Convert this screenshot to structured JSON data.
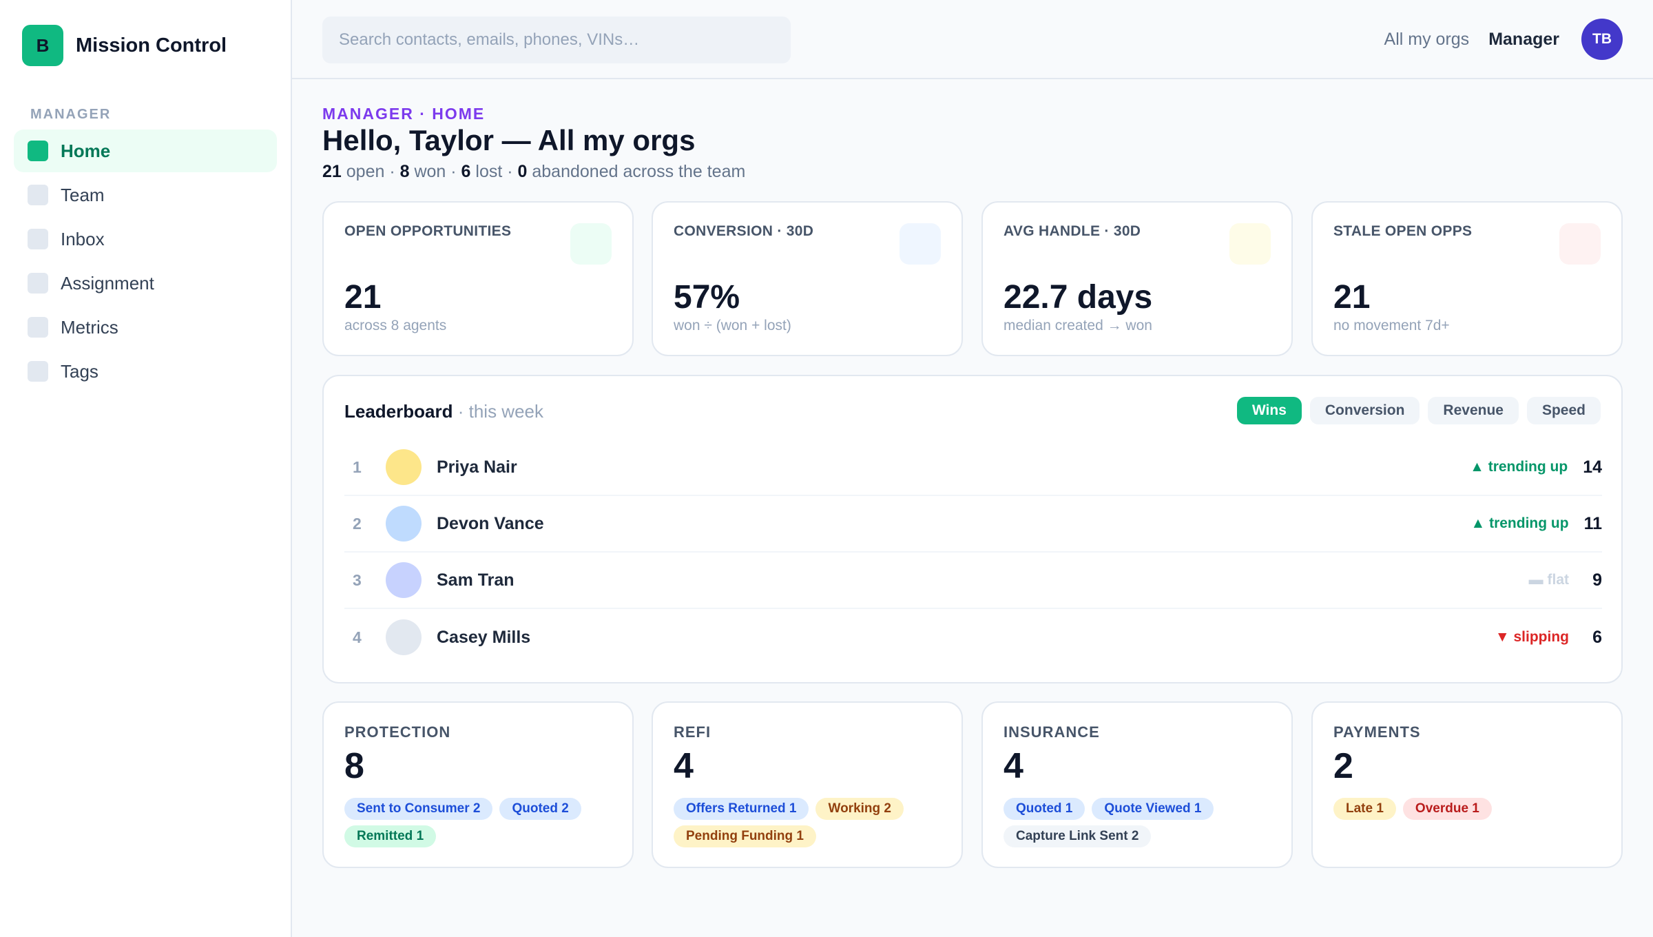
{
  "brand": {
    "logo_letter": "B",
    "name": "Mission Control"
  },
  "sidebar": {
    "section": "MANAGER",
    "items": [
      {
        "label": "Home",
        "active": true
      },
      {
        "label": "Team"
      },
      {
        "label": "Inbox"
      },
      {
        "label": "Assignment"
      },
      {
        "label": "Metrics"
      },
      {
        "label": "Tags"
      }
    ]
  },
  "topbar": {
    "search_placeholder": "Search contacts, emails, phones, VINs…",
    "org_switch": "All my orgs",
    "role": "Manager",
    "avatar_initials": "TB"
  },
  "header": {
    "crumb": "MANAGER · HOME",
    "title": "Hello, Taylor — All my orgs",
    "summary": {
      "open": "21",
      "open_label": " open · ",
      "won": "8",
      "won_label": " won · ",
      "lost": "6",
      "lost_label": " lost · ",
      "abandoned": "0",
      "abandoned_label": " abandoned across the team"
    }
  },
  "kpis": [
    {
      "label": "OPEN OPPORTUNITIES",
      "value": "21",
      "sub": "across 8 agents",
      "icon_color": "#ecfdf5",
      "icon": "open-opportunities-icon"
    },
    {
      "label": "CONVERSION · 30D",
      "value": "57%",
      "sub": "won ÷ (won + lost)",
      "icon_color": "#eff6ff",
      "icon": "conversion-icon"
    },
    {
      "label": "AVG HANDLE · 30D",
      "value": "22.7 days",
      "sub": "median created → won",
      "icon_color": "#fefce8",
      "icon": "avg-handle-icon"
    },
    {
      "label": "STALE OPEN OPPS",
      "value": "21",
      "sub": "no movement 7d+",
      "icon_color": "#fef2f2",
      "icon": "stale-opps-icon"
    }
  ],
  "leaderboard": {
    "title": "Leaderboard",
    "period": " · this week",
    "tabs": [
      {
        "label": "Wins",
        "active": true
      },
      {
        "label": "Conversion"
      },
      {
        "label": "Revenue"
      },
      {
        "label": "Speed"
      }
    ],
    "rows": [
      {
        "rank": "1",
        "name": "Priya Nair",
        "trend": "▲ trending up",
        "trend_color": "#059669",
        "count": "14",
        "avatar_color": "#fde68a"
      },
      {
        "rank": "2",
        "name": "Devon Vance",
        "trend": "▲ trending up",
        "trend_color": "#059669",
        "count": "11",
        "avatar_color": "#bfdbfe"
      },
      {
        "rank": "3",
        "name": "Sam Tran",
        "trend": "▬ flat",
        "trend_color": "#cbd5e1",
        "count": "9",
        "avatar_color": "#c7d2fe"
      },
      {
        "rank": "4",
        "name": "Casey Mills",
        "trend": "▼ slipping",
        "trend_color": "#dc2626",
        "count": "6",
        "avatar_color": "#e2e8f0"
      }
    ]
  },
  "products": [
    {
      "label": "PROTECTION",
      "value": "8",
      "chips": [
        {
          "text": "Sent to Consumer 2",
          "bg": "#dbeafe",
          "fg": "#1d4ed8"
        },
        {
          "text": "Quoted 2",
          "bg": "#dbeafe",
          "fg": "#1d4ed8"
        },
        {
          "text": "Remitted 1",
          "bg": "#d1fae5",
          "fg": "#047857"
        }
      ]
    },
    {
      "label": "REFI",
      "value": "4",
      "chips": [
        {
          "text": "Offers Returned 1",
          "bg": "#dbeafe",
          "fg": "#1d4ed8"
        },
        {
          "text": "Working 2",
          "bg": "#fef3c7",
          "fg": "#92400e"
        },
        {
          "text": "Pending Funding 1",
          "bg": "#fef3c7",
          "fg": "#92400e"
        }
      ]
    },
    {
      "label": "INSURANCE",
      "value": "4",
      "chips": [
        {
          "text": "Quoted 1",
          "bg": "#dbeafe",
          "fg": "#1d4ed8"
        },
        {
          "text": "Quote Viewed 1",
          "bg": "#dbeafe",
          "fg": "#1d4ed8"
        },
        {
          "text": "Capture Link Sent 2",
          "bg": "#f1f5f9",
          "fg": "#334155"
        }
      ]
    },
    {
      "label": "PAYMENTS",
      "value": "2",
      "chips": [
        {
          "text": "Late 1",
          "bg": "#fef3c7",
          "fg": "#92400e"
        },
        {
          "text": "Overdue 1",
          "bg": "#fee2e2",
          "fg": "#b91c1c"
        }
      ]
    }
  ]
}
